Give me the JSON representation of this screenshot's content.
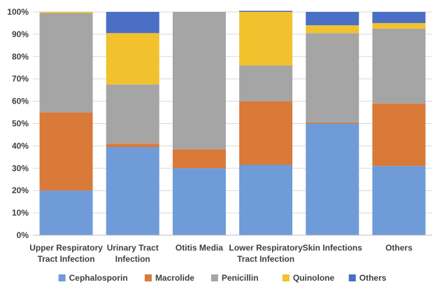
{
  "chart_data": {
    "type": "bar",
    "stacked": true,
    "categories": [
      [
        "Upper Respiratory",
        "Tract Infection"
      ],
      [
        "Urinary Tract",
        "Infection"
      ],
      [
        "Otitis Media"
      ],
      [
        "Lower Respiratory",
        "Tract Infection"
      ],
      [
        "Skin Infections"
      ],
      [
        "Others"
      ]
    ],
    "series": [
      {
        "name": "Cephalosporin",
        "color": "#6f9bd9",
        "values": [
          20,
          39.5,
          30,
          31.5,
          50,
          31
        ]
      },
      {
        "name": "Macrolide",
        "color": "#d97a38",
        "values": [
          35,
          1.5,
          8.5,
          28.5,
          0.5,
          28
        ]
      },
      {
        "name": "Penicillin",
        "color": "#a5a5a5",
        "values": [
          44.5,
          26.5,
          61.5,
          16,
          40,
          33.5
        ]
      },
      {
        "name": "Quinolone",
        "color": "#f2c12e",
        "values": [
          0.5,
          23,
          0,
          24,
          3.5,
          2.5
        ]
      },
      {
        "name": "Others",
        "color": "#4a6fc4",
        "values": [
          0,
          9.5,
          0,
          0.5,
          6,
          5
        ]
      }
    ],
    "yticks": [
      "0%",
      "10%",
      "20%",
      "30%",
      "40%",
      "50%",
      "60%",
      "70%",
      "80%",
      "90%",
      "100%"
    ],
    "ylim": [
      0,
      100
    ],
    "grid": true,
    "legend_position": "bottom"
  }
}
